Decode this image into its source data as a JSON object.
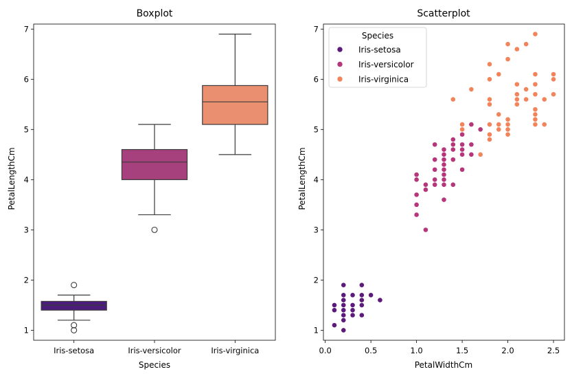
{
  "chart_data": [
    {
      "type": "box",
      "title": "Boxplot",
      "xlabel": "Species",
      "ylabel": "PetalLengthCm",
      "ylim": [
        0.8,
        7.1
      ],
      "yticks": [
        1,
        2,
        3,
        4,
        5,
        6,
        7
      ],
      "categories": [
        "Iris-setosa",
        "Iris-versicolor",
        "Iris-virginica"
      ],
      "boxes": [
        {
          "category": "Iris-setosa",
          "color": "#4b1c7b",
          "whislo": 1.2,
          "q1": 1.4,
          "median": 1.5,
          "q3": 1.575,
          "whishi": 1.7,
          "fliers": [
            1.0,
            1.1,
            1.9
          ]
        },
        {
          "category": "Iris-versicolor",
          "color": "#a7417e",
          "whislo": 3.3,
          "q1": 4.0,
          "median": 4.35,
          "q3": 4.6,
          "whishi": 5.1,
          "fliers": [
            3.0
          ]
        },
        {
          "category": "Iris-virginica",
          "color": "#ea8f6f",
          "whislo": 4.5,
          "q1": 5.1,
          "median": 5.55,
          "q3": 5.875,
          "whishi": 6.9,
          "fliers": []
        }
      ]
    },
    {
      "type": "scatter",
      "title": "Scatterplot",
      "xlabel": "PetalWidthCm",
      "ylabel": "PetalLengthCm",
      "xlim": [
        -0.02,
        2.62
      ],
      "ylim": [
        0.8,
        7.1
      ],
      "xticks": [
        0.0,
        0.5,
        1.0,
        1.5,
        2.0,
        2.5
      ],
      "xtick_labels": [
        "0.0",
        "0.5",
        "1.0",
        "1.5",
        "2.0",
        "2.5"
      ],
      "yticks": [
        1,
        2,
        3,
        4,
        5,
        6,
        7
      ],
      "legend": {
        "title": "Species",
        "position": "top-left"
      },
      "series": [
        {
          "name": "Iris-setosa",
          "color": "#5c1a7a",
          "points": [
            [
              0.1,
              1.1
            ],
            [
              0.1,
              1.4
            ],
            [
              0.1,
              1.5
            ],
            [
              0.2,
              1.0
            ],
            [
              0.2,
              1.2
            ],
            [
              0.2,
              1.3
            ],
            [
              0.2,
              1.4
            ],
            [
              0.2,
              1.5
            ],
            [
              0.2,
              1.6
            ],
            [
              0.2,
              1.7
            ],
            [
              0.2,
              1.9
            ],
            [
              0.3,
              1.3
            ],
            [
              0.3,
              1.4
            ],
            [
              0.3,
              1.5
            ],
            [
              0.3,
              1.7
            ],
            [
              0.4,
              1.3
            ],
            [
              0.4,
              1.5
            ],
            [
              0.4,
              1.6
            ],
            [
              0.4,
              1.7
            ],
            [
              0.4,
              1.9
            ],
            [
              0.5,
              1.7
            ],
            [
              0.6,
              1.6
            ]
          ]
        },
        {
          "name": "Iris-versicolor",
          "color": "#b5367a",
          "points": [
            [
              1.0,
              3.3
            ],
            [
              1.0,
              3.5
            ],
            [
              1.0,
              3.7
            ],
            [
              1.0,
              4.0
            ],
            [
              1.0,
              4.1
            ],
            [
              1.1,
              3.0
            ],
            [
              1.1,
              3.8
            ],
            [
              1.1,
              3.9
            ],
            [
              1.2,
              3.9
            ],
            [
              1.2,
              4.0
            ],
            [
              1.2,
              4.2
            ],
            [
              1.2,
              4.4
            ],
            [
              1.2,
              4.7
            ],
            [
              1.3,
              3.6
            ],
            [
              1.3,
              3.9
            ],
            [
              1.3,
              4.0
            ],
            [
              1.3,
              4.1
            ],
            [
              1.3,
              4.2
            ],
            [
              1.3,
              4.3
            ],
            [
              1.3,
              4.4
            ],
            [
              1.3,
              4.5
            ],
            [
              1.3,
              4.6
            ],
            [
              1.4,
              3.9
            ],
            [
              1.4,
              4.4
            ],
            [
              1.4,
              4.6
            ],
            [
              1.4,
              4.7
            ],
            [
              1.4,
              4.8
            ],
            [
              1.5,
              4.2
            ],
            [
              1.5,
              4.5
            ],
            [
              1.5,
              4.6
            ],
            [
              1.5,
              4.7
            ],
            [
              1.5,
              4.9
            ],
            [
              1.6,
              4.5
            ],
            [
              1.6,
              4.7
            ],
            [
              1.6,
              5.1
            ],
            [
              1.7,
              5.0
            ],
            [
              1.8,
              4.8
            ]
          ]
        },
        {
          "name": "Iris-virginica",
          "color": "#f2845c",
          "points": [
            [
              1.4,
              5.6
            ],
            [
              1.5,
              5.0
            ],
            [
              1.5,
              5.1
            ],
            [
              1.6,
              5.8
            ],
            [
              1.7,
              4.5
            ],
            [
              1.8,
              4.8
            ],
            [
              1.8,
              4.9
            ],
            [
              1.8,
              5.1
            ],
            [
              1.8,
              5.5
            ],
            [
              1.8,
              5.6
            ],
            [
              1.8,
              6.0
            ],
            [
              1.8,
              6.3
            ],
            [
              1.9,
              5.0
            ],
            [
              1.9,
              5.1
            ],
            [
              1.9,
              5.3
            ],
            [
              1.9,
              6.1
            ],
            [
              2.0,
              4.9
            ],
            [
              2.0,
              5.0
            ],
            [
              2.0,
              5.1
            ],
            [
              2.0,
              5.2
            ],
            [
              2.0,
              6.4
            ],
            [
              2.0,
              6.7
            ],
            [
              2.1,
              5.5
            ],
            [
              2.1,
              5.6
            ],
            [
              2.1,
              5.7
            ],
            [
              2.1,
              5.9
            ],
            [
              2.1,
              6.6
            ],
            [
              2.2,
              5.6
            ],
            [
              2.2,
              5.8
            ],
            [
              2.2,
              6.7
            ],
            [
              2.3,
              5.1
            ],
            [
              2.3,
              5.2
            ],
            [
              2.3,
              5.3
            ],
            [
              2.3,
              5.4
            ],
            [
              2.3,
              5.7
            ],
            [
              2.3,
              5.9
            ],
            [
              2.3,
              6.1
            ],
            [
              2.3,
              6.9
            ],
            [
              2.4,
              5.1
            ],
            [
              2.4,
              5.6
            ],
            [
              2.5,
              5.7
            ],
            [
              2.5,
              6.0
            ],
            [
              2.5,
              6.1
            ]
          ]
        }
      ]
    }
  ]
}
